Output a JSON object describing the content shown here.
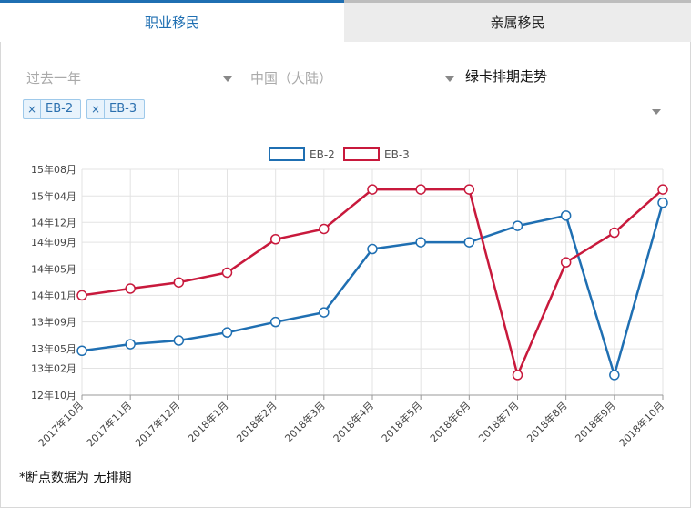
{
  "tabs": {
    "active": "职业移民",
    "inactive": "亲属移民"
  },
  "filters": {
    "period": "过去一年",
    "region": "中国（大陆）",
    "view": "绿卡排期走势"
  },
  "tags": [
    {
      "remove": "×",
      "label": "EB-2"
    },
    {
      "remove": "×",
      "label": "EB-3"
    }
  ],
  "footnote": "*断点数据为 无排期",
  "colors": {
    "eb2": "#1f6fb2",
    "eb3": "#c8193c",
    "accent": "#1f6fb2"
  },
  "chart_data": {
    "type": "line",
    "title": "",
    "legend_position": "top",
    "grid": true,
    "categories": [
      "2017年10月",
      "2017年11月",
      "2017年12月",
      "2018年1月",
      "2018年2月",
      "2018年3月",
      "2018年4月",
      "2018年5月",
      "2018年6月",
      "2018年7月",
      "2018年8月",
      "2018年9月",
      "2018年10月"
    ],
    "y_ticks": [
      "12年10月",
      "13年02月",
      "13年05月",
      "13年09月",
      "14年01月",
      "14年05月",
      "14年09月",
      "14年12月",
      "15年04月",
      "15年08月"
    ],
    "y_tick_values": [
      "2012-10",
      "2013-02",
      "2013-05",
      "2013-09",
      "2014-01",
      "2014-05",
      "2014-09",
      "2014-12",
      "2015-04",
      "2015-08"
    ],
    "series": [
      {
        "name": "EB-2",
        "color": "#1f6fb2",
        "values": [
          "2013-04-22",
          "2013-05-22",
          "2013-06-08",
          "2013-07-15",
          "2013-09-01",
          "2013-10-15",
          "2014-08-01",
          "2014-09-01",
          "2014-09-01",
          "2014-11-15",
          "2015-01-01",
          "2013-01-01",
          "2015-03-01"
        ]
      },
      {
        "name": "EB-3",
        "color": "#c8193c",
        "values": [
          "2014-01-01",
          "2014-02-01",
          "2014-03-01",
          "2014-04-15",
          "2014-09-15",
          "2014-11-01",
          "2015-05-01",
          "2015-05-01",
          "2015-05-01",
          "2013-01-01",
          "2014-06-01",
          "2014-10-15",
          "2015-05-01"
        ]
      }
    ]
  }
}
